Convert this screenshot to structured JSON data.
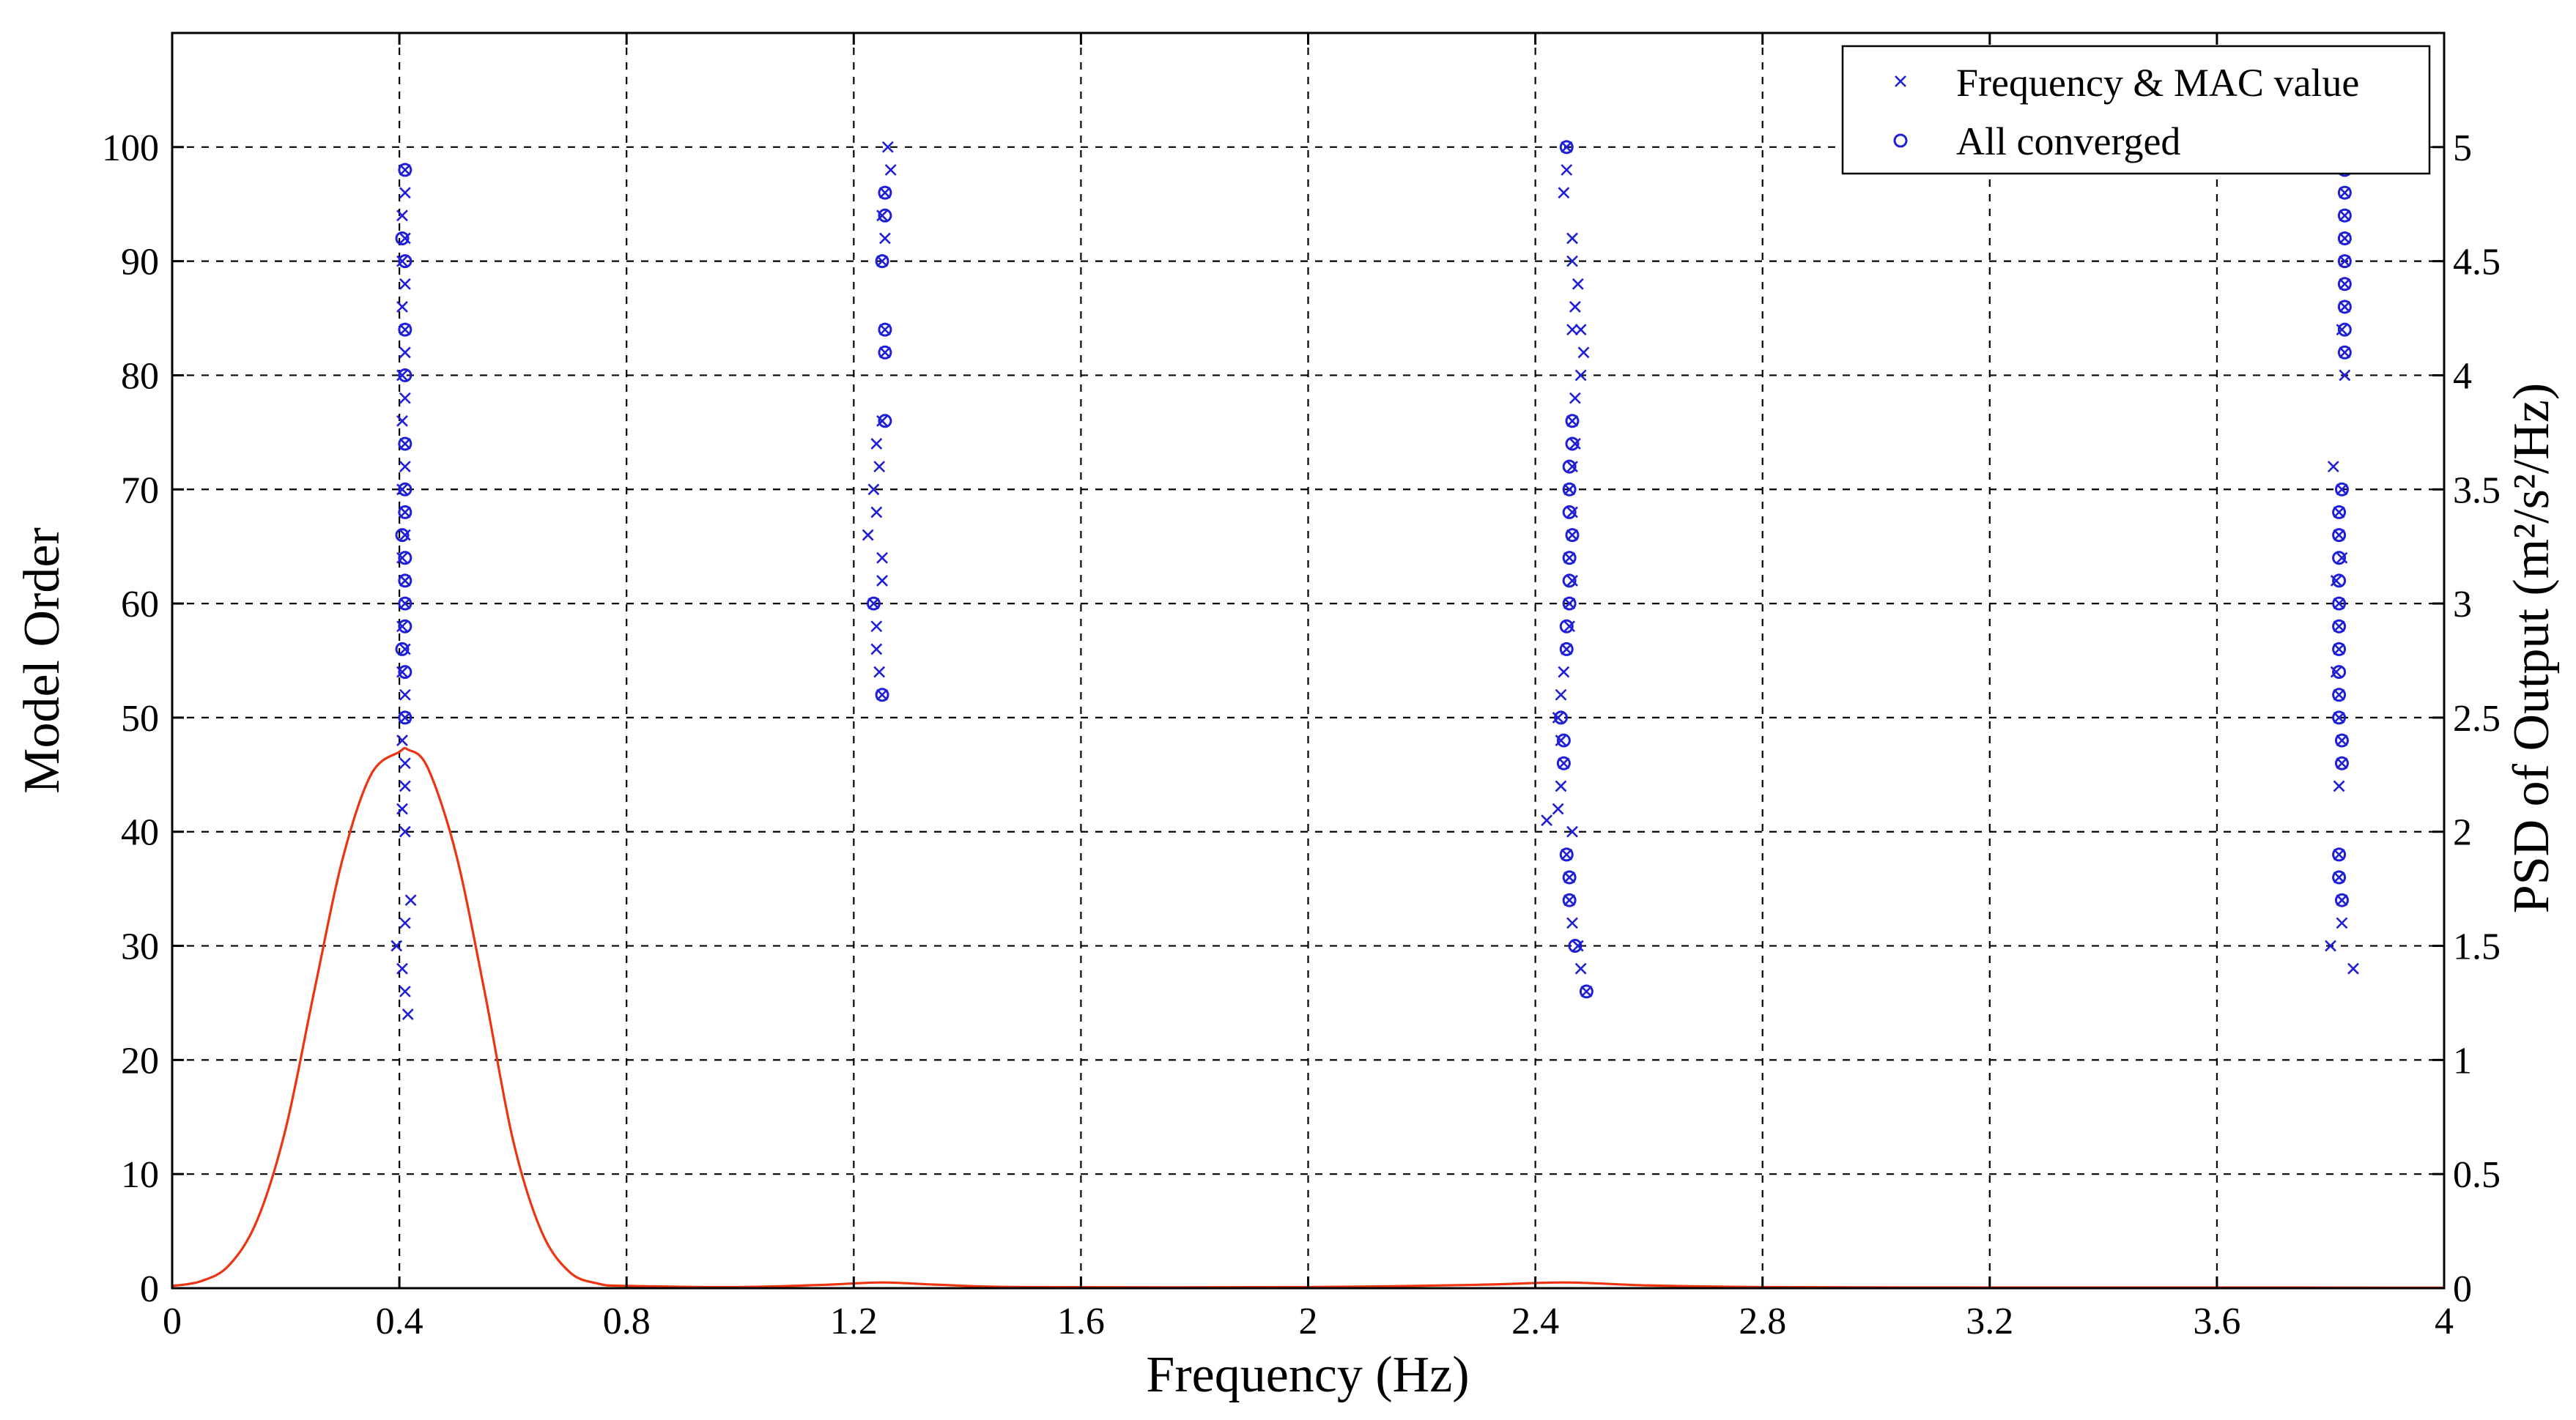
{
  "chart_data": {
    "type": "scatter",
    "title": "",
    "xlabel": "Frequency (Hz)",
    "ylabel": "Model Order",
    "ylabel_right": "PSD of Output (m²/s²/Hz)",
    "xlim": [
      0,
      4
    ],
    "ylim": [
      0,
      110
    ],
    "ylim_right": [
      0,
      5.5
    ],
    "x_ticks": [
      "0",
      "0.4",
      "0.8",
      "1.2",
      "1.6",
      "2",
      "2.4",
      "2.8",
      "3.2",
      "3.6",
      "4"
    ],
    "y_ticks": [
      "0",
      "10",
      "20",
      "30",
      "40",
      "50",
      "60",
      "70",
      "80",
      "90",
      "100"
    ],
    "y_ticks_right": [
      "0",
      "0.5",
      "1",
      "1.5",
      "2",
      "2.5",
      "3",
      "3.5",
      "4",
      "4.5",
      "5"
    ],
    "grid": true,
    "legend_position": "top-right",
    "legend": [
      {
        "label": "Frequency & MAC value",
        "marker": "x"
      },
      {
        "label": "All converged",
        "marker": "o"
      }
    ],
    "colors": {
      "markers": "#1f1fd6",
      "psd": "#ee3311"
    },
    "series": [
      {
        "name": "Frequency & MAC value",
        "marker": "x",
        "points": [
          [
            0.41,
            98
          ],
          [
            0.41,
            96
          ],
          [
            0.405,
            94
          ],
          [
            0.41,
            92
          ],
          [
            0.405,
            90
          ],
          [
            0.41,
            88
          ],
          [
            0.405,
            86
          ],
          [
            0.41,
            84
          ],
          [
            0.41,
            82
          ],
          [
            0.405,
            80
          ],
          [
            0.41,
            78
          ],
          [
            0.405,
            76
          ],
          [
            0.41,
            74
          ],
          [
            0.41,
            72
          ],
          [
            0.405,
            70
          ],
          [
            0.41,
            68
          ],
          [
            0.41,
            66
          ],
          [
            0.405,
            64
          ],
          [
            0.41,
            62
          ],
          [
            0.41,
            60
          ],
          [
            0.405,
            58
          ],
          [
            0.41,
            56
          ],
          [
            0.405,
            54
          ],
          [
            0.41,
            52
          ],
          [
            0.41,
            50
          ],
          [
            0.405,
            48
          ],
          [
            0.41,
            46
          ],
          [
            0.41,
            44
          ],
          [
            0.405,
            42
          ],
          [
            0.41,
            40
          ],
          [
            0.42,
            34
          ],
          [
            0.41,
            32
          ],
          [
            0.395,
            30
          ],
          [
            0.405,
            28
          ],
          [
            0.41,
            26
          ],
          [
            0.415,
            24
          ],
          [
            1.26,
            100
          ],
          [
            1.265,
            98
          ],
          [
            1.255,
            96
          ],
          [
            1.25,
            94
          ],
          [
            1.255,
            92
          ],
          [
            1.25,
            90
          ],
          [
            1.255,
            84
          ],
          [
            1.255,
            82
          ],
          [
            1.25,
            76
          ],
          [
            1.24,
            74
          ],
          [
            1.245,
            72
          ],
          [
            1.235,
            70
          ],
          [
            1.24,
            68
          ],
          [
            1.225,
            66
          ],
          [
            1.25,
            64
          ],
          [
            1.25,
            62
          ],
          [
            1.235,
            60
          ],
          [
            1.24,
            58
          ],
          [
            1.24,
            56
          ],
          [
            1.245,
            54
          ],
          [
            1.25,
            52
          ],
          [
            2.455,
            100
          ],
          [
            2.455,
            98
          ],
          [
            2.45,
            96
          ],
          [
            2.465,
            92
          ],
          [
            2.465,
            90
          ],
          [
            2.475,
            88
          ],
          [
            2.47,
            86
          ],
          [
            2.465,
            84
          ],
          [
            2.48,
            84
          ],
          [
            2.485,
            82
          ],
          [
            2.48,
            80
          ],
          [
            2.47,
            78
          ],
          [
            2.465,
            76
          ],
          [
            2.47,
            74
          ],
          [
            2.465,
            72
          ],
          [
            2.46,
            70
          ],
          [
            2.465,
            68
          ],
          [
            2.465,
            66
          ],
          [
            2.46,
            64
          ],
          [
            2.465,
            62
          ],
          [
            2.46,
            60
          ],
          [
            2.46,
            58
          ],
          [
            2.455,
            56
          ],
          [
            2.45,
            54
          ],
          [
            2.445,
            52
          ],
          [
            2.44,
            50
          ],
          [
            2.445,
            48
          ],
          [
            2.45,
            46
          ],
          [
            2.445,
            44
          ],
          [
            2.44,
            42
          ],
          [
            2.42,
            41
          ],
          [
            2.465,
            40
          ],
          [
            2.455,
            38
          ],
          [
            2.46,
            36
          ],
          [
            2.46,
            34
          ],
          [
            2.465,
            32
          ],
          [
            2.475,
            30
          ],
          [
            2.48,
            28
          ],
          [
            2.49,
            26
          ],
          [
            3.825,
            100
          ],
          [
            3.825,
            98
          ],
          [
            3.825,
            96
          ],
          [
            3.825,
            94
          ],
          [
            3.825,
            92
          ],
          [
            3.825,
            90
          ],
          [
            3.825,
            88
          ],
          [
            3.825,
            86
          ],
          [
            3.82,
            84
          ],
          [
            3.825,
            82
          ],
          [
            3.825,
            80
          ],
          [
            3.805,
            72
          ],
          [
            3.82,
            70
          ],
          [
            3.815,
            68
          ],
          [
            3.815,
            66
          ],
          [
            3.82,
            64
          ],
          [
            3.81,
            62
          ],
          [
            3.815,
            60
          ],
          [
            3.815,
            58
          ],
          [
            3.815,
            56
          ],
          [
            3.81,
            54
          ],
          [
            3.815,
            52
          ],
          [
            3.815,
            50
          ],
          [
            3.82,
            48
          ],
          [
            3.82,
            46
          ],
          [
            3.815,
            44
          ],
          [
            3.815,
            38
          ],
          [
            3.815,
            36
          ],
          [
            3.82,
            34
          ],
          [
            3.82,
            32
          ],
          [
            3.8,
            30
          ],
          [
            3.84,
            28
          ]
        ]
      },
      {
        "name": "All converged",
        "marker": "o",
        "points": [
          [
            0.41,
            98
          ],
          [
            0.405,
            92
          ],
          [
            0.41,
            90
          ],
          [
            0.41,
            84
          ],
          [
            0.41,
            80
          ],
          [
            0.41,
            74
          ],
          [
            0.41,
            70
          ],
          [
            0.41,
            68
          ],
          [
            0.405,
            66
          ],
          [
            0.41,
            64
          ],
          [
            0.41,
            62
          ],
          [
            0.41,
            60
          ],
          [
            0.41,
            58
          ],
          [
            0.405,
            56
          ],
          [
            0.41,
            54
          ],
          [
            0.41,
            50
          ],
          [
            1.255,
            96
          ],
          [
            1.255,
            94
          ],
          [
            1.25,
            90
          ],
          [
            1.255,
            84
          ],
          [
            1.255,
            82
          ],
          [
            1.255,
            76
          ],
          [
            1.235,
            60
          ],
          [
            1.25,
            52
          ],
          [
            2.455,
            100
          ],
          [
            2.465,
            76
          ],
          [
            2.465,
            74
          ],
          [
            2.46,
            72
          ],
          [
            2.46,
            70
          ],
          [
            2.46,
            68
          ],
          [
            2.465,
            66
          ],
          [
            2.46,
            64
          ],
          [
            2.46,
            62
          ],
          [
            2.46,
            60
          ],
          [
            2.455,
            58
          ],
          [
            2.455,
            56
          ],
          [
            2.445,
            50
          ],
          [
            2.45,
            48
          ],
          [
            2.45,
            46
          ],
          [
            2.455,
            38
          ],
          [
            2.46,
            36
          ],
          [
            2.46,
            34
          ],
          [
            2.47,
            30
          ],
          [
            2.49,
            26
          ],
          [
            3.825,
            100
          ],
          [
            3.825,
            98
          ],
          [
            3.825,
            96
          ],
          [
            3.825,
            94
          ],
          [
            3.825,
            92
          ],
          [
            3.825,
            90
          ],
          [
            3.825,
            88
          ],
          [
            3.825,
            86
          ],
          [
            3.825,
            84
          ],
          [
            3.825,
            82
          ],
          [
            3.82,
            70
          ],
          [
            3.815,
            68
          ],
          [
            3.815,
            66
          ],
          [
            3.815,
            64
          ],
          [
            3.815,
            62
          ],
          [
            3.815,
            60
          ],
          [
            3.815,
            58
          ],
          [
            3.815,
            56
          ],
          [
            3.815,
            54
          ],
          [
            3.815,
            52
          ],
          [
            3.815,
            50
          ],
          [
            3.82,
            48
          ],
          [
            3.82,
            46
          ],
          [
            3.815,
            38
          ],
          [
            3.815,
            36
          ],
          [
            3.82,
            34
          ]
        ]
      },
      {
        "name": "PSD of Output",
        "type": "line",
        "axis": "right",
        "x": [
          0,
          0.05,
          0.1,
          0.15,
          0.2,
          0.25,
          0.3,
          0.35,
          0.4,
          0.415,
          0.45,
          0.5,
          0.55,
          0.6,
          0.65,
          0.7,
          0.75,
          0.8,
          1.0,
          1.15,
          1.25,
          1.35,
          1.5,
          2.0,
          2.3,
          2.45,
          2.6,
          2.8,
          3.2,
          3.6,
          4.0
        ],
        "y": [
          0.01,
          0.03,
          0.1,
          0.3,
          0.7,
          1.3,
          1.88,
          2.25,
          2.35,
          2.36,
          2.28,
          1.9,
          1.3,
          0.65,
          0.25,
          0.07,
          0.02,
          0.01,
          0.005,
          0.015,
          0.025,
          0.015,
          0.005,
          0.005,
          0.015,
          0.025,
          0.012,
          0.005,
          0.003,
          0.003,
          0.002
        ]
      }
    ]
  }
}
